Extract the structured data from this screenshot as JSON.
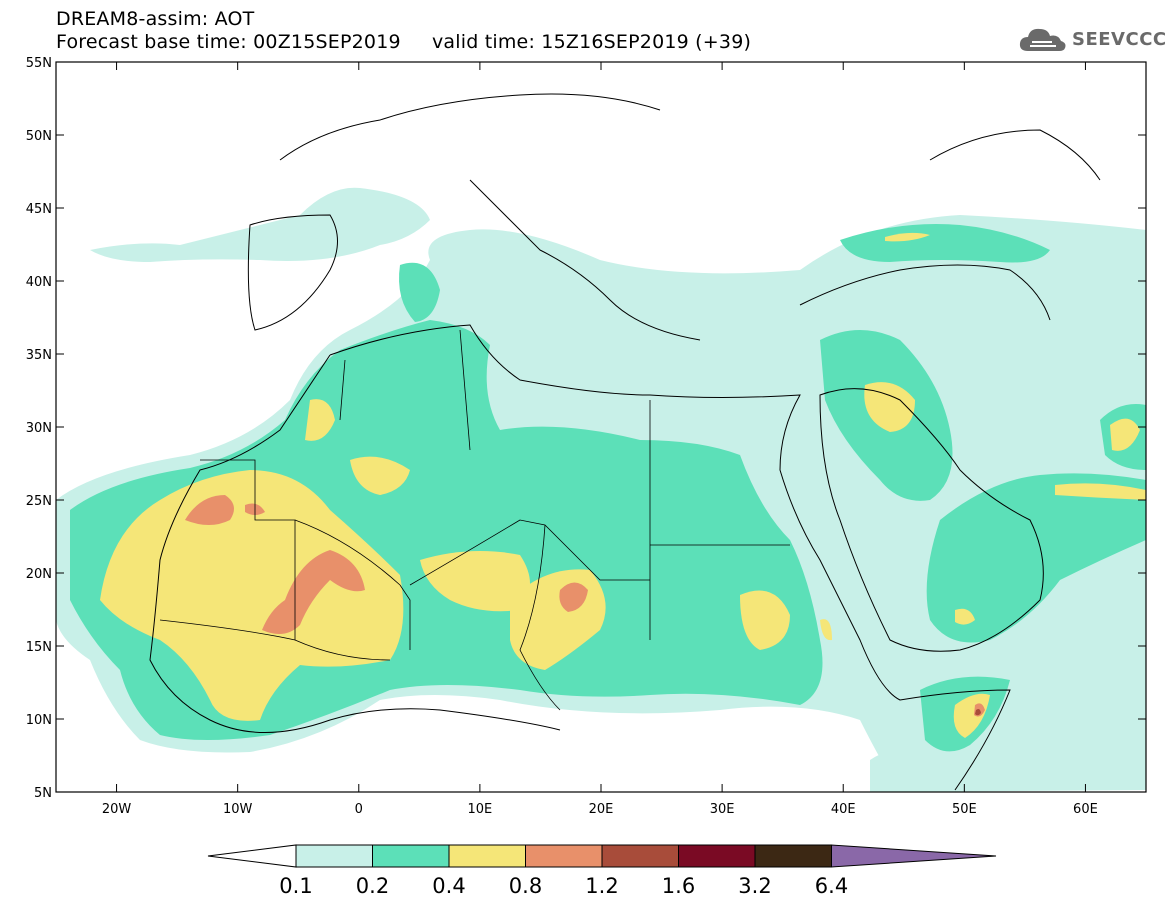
{
  "header": {
    "title_line1": "DREAM8-assim: AOT",
    "title_line2": "Forecast base time: 00Z15SEP2019     valid time: 15Z16SEP2019 (+39)",
    "logo_text": "SEEVCCC",
    "logo_icon": "cloud-icon"
  },
  "map": {
    "lon_range": [
      -25,
      65
    ],
    "lat_range": [
      5,
      55
    ],
    "lon_ticks": [
      {
        "value": -20,
        "label": "20W"
      },
      {
        "value": -10,
        "label": "10W"
      },
      {
        "value": 0,
        "label": "0"
      },
      {
        "value": 10,
        "label": "10E"
      },
      {
        "value": 20,
        "label": "20E"
      },
      {
        "value": 30,
        "label": "30E"
      },
      {
        "value": 40,
        "label": "40E"
      },
      {
        "value": 50,
        "label": "50E"
      },
      {
        "value": 60,
        "label": "60E"
      }
    ],
    "lat_ticks": [
      {
        "value": 5,
        "label": "5N"
      },
      {
        "value": 10,
        "label": "10N"
      },
      {
        "value": 15,
        "label": "15N"
      },
      {
        "value": 20,
        "label": "20N"
      },
      {
        "value": 25,
        "label": "25N"
      },
      {
        "value": 30,
        "label": "30N"
      },
      {
        "value": 35,
        "label": "35N"
      },
      {
        "value": 40,
        "label": "40N"
      },
      {
        "value": 45,
        "label": "45N"
      },
      {
        "value": 50,
        "label": "50N"
      },
      {
        "value": 55,
        "label": "55N"
      }
    ]
  },
  "colorbar": {
    "colors": [
      "#c8f0e8",
      "#5ce0b8",
      "#f5e678",
      "#e8906a",
      "#a84c3a",
      "#7a0a24",
      "#3c2814",
      "#8a68a8"
    ],
    "labels": [
      "0.1",
      "0.2",
      "0.4",
      "0.8",
      "1.2",
      "1.6",
      "3.2",
      "6.4"
    ]
  }
}
